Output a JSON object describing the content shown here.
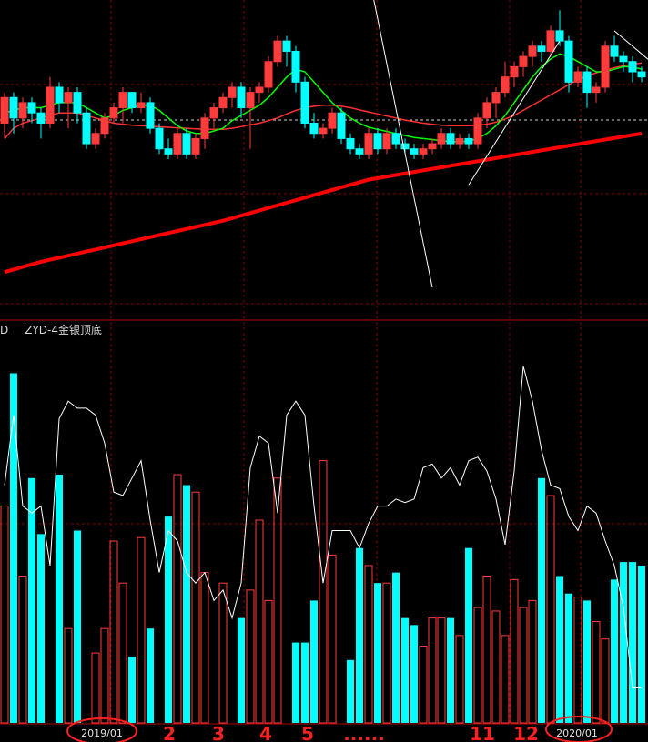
{
  "panel_labels": {
    "left_cut": "D",
    "indicator_name": "ZYD-4金银顶底"
  },
  "colors": {
    "background": "#000000",
    "up": "#ff3b3b",
    "down": "#00ffff",
    "ma_short": "#00ff00",
    "ma_mid": "#ff3030",
    "ma_long": "#ff0000",
    "indicator_line": "#ffffff",
    "grid": "#800000",
    "annotation": "#ff2020"
  },
  "chart_data": [
    {
      "type": "candlestick",
      "title": "",
      "grid": true,
      "candles": [
        {
          "o": 6,
          "c": 11,
          "h": 12,
          "l": 3
        },
        {
          "o": 11,
          "c": 7,
          "h": 12,
          "l": 4
        },
        {
          "o": 7,
          "c": 10,
          "h": 11,
          "l": 5
        },
        {
          "o": 10,
          "c": 8,
          "h": 11,
          "l": 6
        },
        {
          "o": 8,
          "c": 6,
          "h": 9,
          "l": 3
        },
        {
          "o": 6,
          "c": 13,
          "h": 15,
          "l": 5
        },
        {
          "o": 13,
          "c": 10,
          "h": 14,
          "l": 8
        },
        {
          "o": 10,
          "c": 12,
          "h": 13,
          "l": 5
        },
        {
          "o": 12,
          "c": 8,
          "h": 13,
          "l": 6
        },
        {
          "o": 8,
          "c": 2,
          "h": 9,
          "l": 1
        },
        {
          "o": 2,
          "c": 4,
          "h": 5,
          "l": 1
        },
        {
          "o": 4,
          "c": 7,
          "h": 8,
          "l": 3
        },
        {
          "o": 7,
          "c": 9,
          "h": 10,
          "l": 6
        },
        {
          "o": 9,
          "c": 12,
          "h": 13,
          "l": 6
        },
        {
          "o": 12,
          "c": 9,
          "h": 12,
          "l": 8
        },
        {
          "o": 9,
          "c": 10,
          "h": 12,
          "l": 8
        },
        {
          "o": 10,
          "c": 5,
          "h": 11,
          "l": 4
        },
        {
          "o": 5,
          "c": 1,
          "h": 6,
          "l": 0
        },
        {
          "o": 1,
          "c": 0,
          "h": 3,
          "l": -1
        },
        {
          "o": 0,
          "c": 4,
          "h": 5,
          "l": -1
        },
        {
          "o": 4,
          "c": 0,
          "h": 5,
          "l": -1
        },
        {
          "o": 0,
          "c": 3,
          "h": 4,
          "l": -1
        },
        {
          "o": 3,
          "c": 7,
          "h": 8,
          "l": 1
        },
        {
          "o": 7,
          "c": 9,
          "h": 10,
          "l": 5
        },
        {
          "o": 9,
          "c": 11,
          "h": 12,
          "l": 8
        },
        {
          "o": 11,
          "c": 13,
          "h": 14,
          "l": 9
        },
        {
          "o": 13,
          "c": 9,
          "h": 14,
          "l": 7
        },
        {
          "o": 9,
          "c": 12,
          "h": 13,
          "l": 1
        },
        {
          "o": 12,
          "c": 13,
          "h": 14,
          "l": 10
        },
        {
          "o": 13,
          "c": 18,
          "h": 19,
          "l": 12
        },
        {
          "o": 18,
          "c": 22,
          "h": 23,
          "l": 17
        },
        {
          "o": 22,
          "c": 20,
          "h": 23,
          "l": 17
        },
        {
          "o": 20,
          "c": 14,
          "h": 21,
          "l": 12
        },
        {
          "o": 14,
          "c": 6,
          "h": 15,
          "l": 5
        },
        {
          "o": 6,
          "c": 4,
          "h": 8,
          "l": 3
        },
        {
          "o": 4,
          "c": 5,
          "h": 6,
          "l": 3
        },
        {
          "o": 5,
          "c": 8,
          "h": 9,
          "l": 4
        },
        {
          "o": 8,
          "c": 3,
          "h": 9,
          "l": 2
        },
        {
          "o": 3,
          "c": 1,
          "h": 4,
          "l": 0
        },
        {
          "o": 1,
          "c": 0,
          "h": 2,
          "l": -1
        },
        {
          "o": 0,
          "c": 4,
          "h": 5,
          "l": -1
        },
        {
          "o": 4,
          "c": 1,
          "h": 5,
          "l": 0
        },
        {
          "o": 1,
          "c": 4,
          "h": 5,
          "l": 0
        },
        {
          "o": 4,
          "c": 2,
          "h": 5,
          "l": 1
        },
        {
          "o": 2,
          "c": 1,
          "h": 3,
          "l": 0
        },
        {
          "o": 1,
          "c": 0,
          "h": 2,
          "l": -1
        },
        {
          "o": 0,
          "c": 1,
          "h": 2,
          "l": -1
        },
        {
          "o": 1,
          "c": 2,
          "h": 3,
          "l": 0
        },
        {
          "o": 2,
          "c": 4,
          "h": 5,
          "l": 1
        },
        {
          "o": 4,
          "c": 2,
          "h": 5,
          "l": 1
        },
        {
          "o": 2,
          "c": 3,
          "h": 4,
          "l": 1
        },
        {
          "o": 3,
          "c": 2,
          "h": 4,
          "l": 1
        },
        {
          "o": 2,
          "c": 7,
          "h": 8,
          "l": 1
        },
        {
          "o": 7,
          "c": 10,
          "h": 11,
          "l": 5
        },
        {
          "o": 10,
          "c": 12,
          "h": 13,
          "l": 7
        },
        {
          "o": 12,
          "c": 15,
          "h": 18,
          "l": 11
        },
        {
          "o": 15,
          "c": 17,
          "h": 18,
          "l": 13
        },
        {
          "o": 17,
          "c": 19,
          "h": 20,
          "l": 15
        },
        {
          "o": 19,
          "c": 21,
          "h": 22,
          "l": 17
        },
        {
          "o": 21,
          "c": 20,
          "h": 22,
          "l": 18
        },
        {
          "o": 20,
          "c": 24,
          "h": 25,
          "l": 19
        },
        {
          "o": 24,
          "c": 22,
          "h": 28,
          "l": 21
        },
        {
          "o": 22,
          "c": 14,
          "h": 23,
          "l": 12
        },
        {
          "o": 14,
          "c": 16,
          "h": 17,
          "l": 13
        },
        {
          "o": 16,
          "c": 12,
          "h": 17,
          "l": 9
        },
        {
          "o": 12,
          "c": 13,
          "h": 14,
          "l": 10
        },
        {
          "o": 13,
          "c": 21,
          "h": 22,
          "l": 12
        },
        {
          "o": 21,
          "c": 19,
          "h": 23,
          "l": 18
        },
        {
          "o": 19,
          "c": 18,
          "h": 20,
          "l": 16
        },
        {
          "o": 18,
          "c": 16,
          "h": 19,
          "l": 14
        },
        {
          "o": 16,
          "c": 15,
          "h": 17,
          "l": 14
        }
      ],
      "ma_short": [
        8,
        8.5,
        9,
        9,
        9,
        9.5,
        10,
        10,
        10,
        9,
        8,
        7,
        7.5,
        8.5,
        9,
        9.5,
        9.5,
        8.5,
        7,
        5.5,
        4.5,
        4,
        4,
        4.5,
        5,
        6.5,
        7.5,
        8.5,
        9.5,
        11,
        13,
        15,
        16.5,
        16,
        14,
        12,
        10,
        8.5,
        7,
        6,
        5.2,
        4.8,
        4.4,
        4,
        3.6,
        3.2,
        3,
        2.8,
        2.6,
        2.4,
        2.4,
        2.5,
        3,
        4,
        5.5,
        7.5,
        10,
        12.5,
        15,
        17,
        18.5,
        19.5,
        19,
        18,
        17,
        16,
        16,
        16.5,
        17,
        17,
        16.5
      ],
      "ma_mid": [
        3,
        5,
        6,
        6.5,
        7,
        7.5,
        8,
        8,
        8,
        7.5,
        7,
        6.5,
        6,
        5.8,
        5.6,
        5.5,
        5.4,
        5.3,
        5.2,
        5.1,
        5.0,
        4.9,
        4.8,
        4.8,
        4.8,
        5,
        5.3,
        5.7,
        6,
        6.5,
        7,
        7.8,
        8.5,
        9,
        9.3,
        9.5,
        9.5,
        9.3,
        9,
        8.6,
        8.2,
        7.8,
        7.4,
        7,
        6.6,
        6.3,
        6,
        5.8,
        5.6,
        5.5,
        5.5,
        5.5,
        5.6,
        5.8,
        6.2,
        6.8,
        7.5,
        8.5,
        9.5,
        10.5,
        11.5,
        12.5,
        13.5,
        14.5,
        15.2,
        15.8,
        16.3,
        16.8,
        17.2,
        17.5,
        17.7
      ],
      "ma_long": [
        -23,
        -22.5,
        -22,
        -21.5,
        -21,
        -20.6,
        -20.2,
        -19.8,
        -19.4,
        -19,
        -18.6,
        -18.2,
        -17.8,
        -17.4,
        -17,
        -16.6,
        -16.2,
        -15.8,
        -15.4,
        -15,
        -14.6,
        -14.2,
        -13.8,
        -13.4,
        -13,
        -12.5,
        -12,
        -11.5,
        -11,
        -10.5,
        -10,
        -9.5,
        -9,
        -8.5,
        -8,
        -7.5,
        -7,
        -6.5,
        -6,
        -5.5,
        -5,
        -4.7,
        -4.4,
        -4.1,
        -3.8,
        -3.5,
        -3.2,
        -2.9,
        -2.6,
        -2.3,
        -2,
        -1.7,
        -1.4,
        -1.1,
        -0.8,
        -0.5,
        -0.2,
        0.1,
        0.4,
        0.7,
        1,
        1.3,
        1.6,
        1.9,
        2.2,
        2.5,
        2.8,
        3.1,
        3.4,
        3.7,
        4
      ],
      "ylim": [
        -32,
        30
      ]
    },
    {
      "type": "bar",
      "title": "ZYD-4金银顶底",
      "grid": true,
      "series": [
        {
          "values": [
            62,
            100,
            42,
            70,
            54,
            0,
            71,
            27,
            55,
            0,
            20,
            27,
            52,
            40,
            19,
            53,
            27,
            0,
            59,
            71,
            68,
            66,
            43,
            0,
            40,
            0,
            30,
            38,
            58,
            35,
            70,
            0,
            23,
            23,
            35,
            75,
            48,
            0,
            18,
            50,
            45,
            40,
            40,
            43,
            30,
            28,
            22,
            30,
            30,
            30,
            25,
            50,
            33,
            42,
            32,
            25,
            41,
            33,
            35,
            70,
            65,
            42,
            37,
            36,
            35,
            29,
            24,
            41,
            46,
            46,
            45
          ]
        },
        {
          "values": [
            62,
            100,
            42,
            70,
            54,
            0,
            71,
            27,
            55,
            0,
            20,
            27,
            52,
            40,
            19,
            53,
            27,
            0,
            59,
            71,
            68,
            66,
            43,
            0,
            40,
            0,
            30,
            38,
            58,
            35,
            70,
            0,
            23,
            23,
            35,
            75,
            48,
            0,
            18,
            50,
            45,
            40,
            40,
            43,
            30,
            28,
            22,
            30,
            30,
            30,
            25,
            50,
            33,
            42,
            32,
            25,
            41,
            33,
            35,
            70,
            65,
            42,
            37,
            36,
            35,
            29,
            24,
            41,
            46,
            46,
            45
          ]
        }
      ],
      "line": [
        68,
        88,
        62,
        60,
        62,
        45,
        87,
        92,
        90,
        90,
        88,
        80,
        66,
        65,
        70,
        75,
        58,
        43,
        55,
        52,
        43,
        40,
        43,
        35,
        38,
        30,
        40,
        73,
        82,
        80,
        60,
        88,
        92,
        88,
        62,
        40,
        55,
        55,
        55,
        50,
        57,
        62,
        62,
        64,
        63,
        64,
        73,
        74,
        70,
        73,
        68,
        75,
        76,
        72,
        64,
        51,
        72,
        102,
        92,
        78,
        68,
        67,
        59,
        55,
        62,
        60,
        52,
        45,
        33,
        10,
        10
      ],
      "ylim": [
        0,
        110
      ]
    }
  ],
  "x_axis": {
    "ticks": [
      "2019/01",
      "2020/01"
    ],
    "annotations": [
      "2",
      "3",
      "4",
      "5",
      "......",
      "11",
      "12"
    ]
  }
}
